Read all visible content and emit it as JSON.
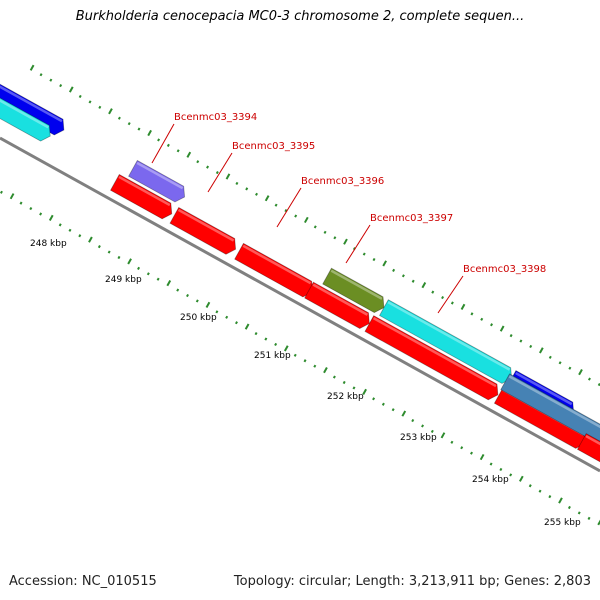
{
  "title": "Burkholderia cenocepacia MC0-3 chromosome 2, complete sequen...",
  "footer": {
    "accession": "Accession: NC_010515",
    "stats": "Topology: circular; Length: 3,213,911 bp; Genes: 2,803"
  },
  "colors": {
    "backbone": "#808080",
    "tick": "#2e8b2e",
    "label": "#cc0000",
    "red": "#ff0000",
    "cyan": "#19e0e0",
    "blue": "#0000ee",
    "purple": "#7b68ee",
    "olive": "#6b8e23",
    "steelblue": "#4682b4"
  },
  "gene_labels": [
    "Bcenmc03_3394",
    "Bcenmc03_3395",
    "Bcenmc03_3396",
    "Bcenmc03_3397",
    "Bcenmc03_3398"
  ],
  "kbp_labels": [
    "248 kbp",
    "249 kbp",
    "250 kbp",
    "251 kbp",
    "252 kbp",
    "253 kbp",
    "254 kbp",
    "255 kbp"
  ]
}
